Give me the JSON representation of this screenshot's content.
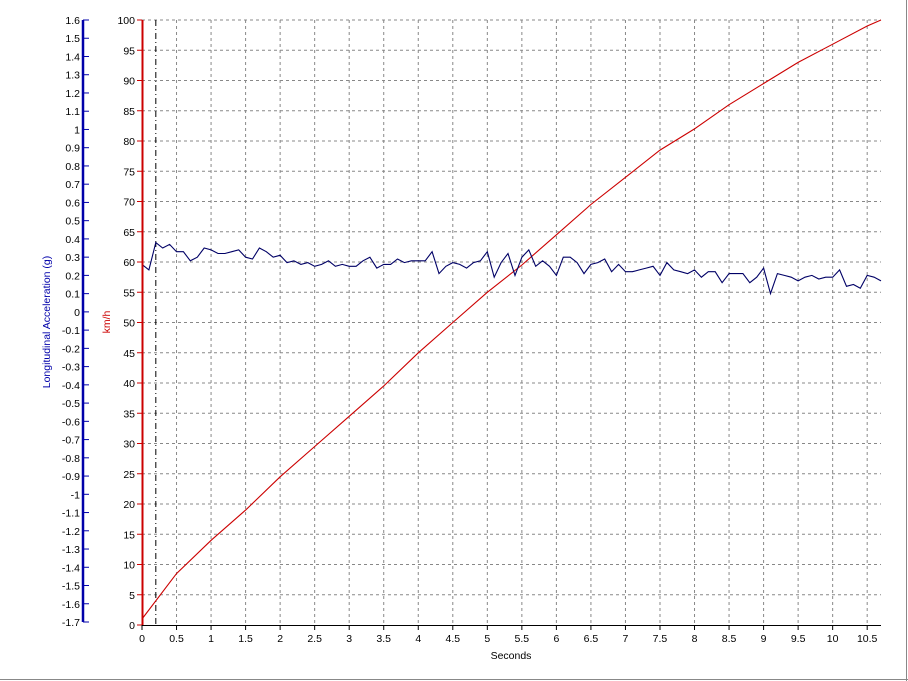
{
  "chart_data": {
    "type": "line",
    "xlabel": "Seconds",
    "ylabel_left": "Longitudinal Acceleration (g)",
    "ylabel_right": "km/h",
    "xlim": [
      0,
      10.7
    ],
    "speed_axis": {
      "min": 0,
      "max": 100,
      "step": 5,
      "color": "#cc0000"
    },
    "accel_axis": {
      "min": -1.7,
      "max": 1.6,
      "step": 0.1,
      "color": "#0000aa"
    },
    "x_ticks": [
      "0",
      "0.5",
      "1",
      "1.5",
      "2",
      "2.5",
      "3",
      "3.5",
      "4",
      "4.5",
      "5",
      "5.5",
      "6",
      "6.5",
      "7",
      "7.5",
      "8",
      "8.5",
      "9",
      "9.5",
      "10",
      "10.5"
    ],
    "grid": true,
    "marker_x": 0.2,
    "series": [
      {
        "axis": "speed",
        "color": "#cc0000",
        "x": [
          0,
          0.5,
          1,
          1.5,
          2,
          2.5,
          3,
          3.5,
          4,
          4.5,
          5,
          5.5,
          6,
          6.5,
          7,
          7.5,
          8,
          8.5,
          9,
          9.5,
          10,
          10.5,
          10.7
        ],
        "y": [
          1,
          8.5,
          14,
          19,
          24.5,
          29.5,
          34.5,
          39.5,
          45,
          50,
          55,
          59.5,
          64.5,
          69.5,
          74,
          78.5,
          82,
          86,
          89.5,
          93,
          96,
          99,
          100
        ]
      },
      {
        "axis": "accel",
        "color": "#000066",
        "x": [
          0,
          0.1,
          0.2,
          0.3,
          0.4,
          0.5,
          0.6,
          0.7,
          0.8,
          0.9,
          1.0,
          1.1,
          1.2,
          1.3,
          1.4,
          1.5,
          1.6,
          1.7,
          1.8,
          1.9,
          2.0,
          2.1,
          2.2,
          2.3,
          2.4,
          2.5,
          2.6,
          2.7,
          2.8,
          2.9,
          3.0,
          3.1,
          3.2,
          3.3,
          3.4,
          3.5,
          3.6,
          3.7,
          3.8,
          3.9,
          4.0,
          4.1,
          4.2,
          4.3,
          4.4,
          4.5,
          4.6,
          4.7,
          4.8,
          4.9,
          5.0,
          5.1,
          5.2,
          5.3,
          5.4,
          5.5,
          5.6,
          5.7,
          5.8,
          5.9,
          6.0,
          6.1,
          6.2,
          6.3,
          6.4,
          6.5,
          6.6,
          6.7,
          6.8,
          6.9,
          7.0,
          7.1,
          7.2,
          7.3,
          7.4,
          7.5,
          7.6,
          7.7,
          7.8,
          7.9,
          8.0,
          8.1,
          8.2,
          8.3,
          8.4,
          8.5,
          8.6,
          8.7,
          8.8,
          8.9,
          9.0,
          9.1,
          9.2,
          9.3,
          9.4,
          9.5,
          9.6,
          9.7,
          9.8,
          9.9,
          10.0,
          10.1,
          10.2,
          10.3,
          10.4,
          10.5,
          10.6,
          10.7
        ],
        "y": [
          0.26,
          0.23,
          0.38,
          0.35,
          0.37,
          0.33,
          0.33,
          0.28,
          0.3,
          0.35,
          0.34,
          0.32,
          0.32,
          0.33,
          0.34,
          0.3,
          0.29,
          0.35,
          0.33,
          0.3,
          0.31,
          0.27,
          0.28,
          0.26,
          0.27,
          0.25,
          0.26,
          0.28,
          0.25,
          0.26,
          0.25,
          0.25,
          0.28,
          0.3,
          0.24,
          0.26,
          0.26,
          0.29,
          0.27,
          0.28,
          0.28,
          0.28,
          0.33,
          0.21,
          0.25,
          0.27,
          0.26,
          0.24,
          0.27,
          0.28,
          0.33,
          0.19,
          0.27,
          0.32,
          0.2,
          0.3,
          0.34,
          0.25,
          0.28,
          0.25,
          0.2,
          0.3,
          0.3,
          0.27,
          0.21,
          0.26,
          0.27,
          0.29,
          0.22,
          0.26,
          0.22,
          0.22,
          0.23,
          0.24,
          0.25,
          0.2,
          0.27,
          0.23,
          0.22,
          0.21,
          0.23,
          0.19,
          0.22,
          0.22,
          0.16,
          0.21,
          0.21,
          0.21,
          0.16,
          0.19,
          0.24,
          0.1,
          0.21,
          0.2,
          0.19,
          0.17,
          0.19,
          0.2,
          0.18,
          0.19,
          0.19,
          0.23,
          0.14,
          0.15,
          0.13,
          0.2,
          0.19,
          0.17
        ]
      }
    ]
  }
}
